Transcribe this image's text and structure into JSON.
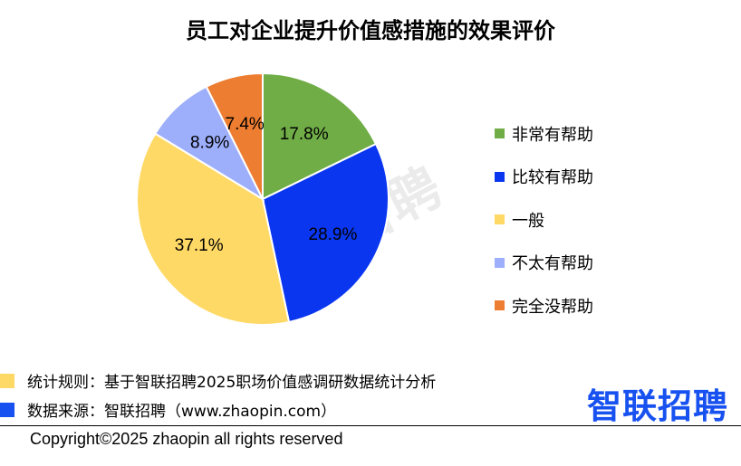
{
  "chart_data": {
    "type": "pie",
    "title": "员工对企业提升价值感措施的效果评价",
    "slices": [
      {
        "label": "非常有帮助",
        "value": 17.8,
        "display": "17.8%",
        "color": "#70ad47"
      },
      {
        "label": "比较有帮助",
        "value": 28.9,
        "display": "28.9%",
        "color": "#0a36f0"
      },
      {
        "label": "一般",
        "value": 37.1,
        "display": "37.1%",
        "color": "#ffd966"
      },
      {
        "label": "不太有帮助",
        "value": 8.9,
        "display": "8.9%",
        "color": "#9daefb"
      },
      {
        "label": "完全没帮助",
        "value": 7.4,
        "display": "7.4%",
        "color": "#ed7d31"
      }
    ],
    "legend_placement": "right"
  },
  "watermark": "智联招聘",
  "footer": {
    "rule_text": "统计规则：基于智联招聘2025职场价值感调研数据统计分析",
    "rule_color": "#ffd966",
    "source_text": "数据来源：智联招聘（www.zhaopin.com）",
    "source_color": "#1751f0",
    "logo_text": "智联招聘",
    "copyright": "Copyright©2025 zhaopin all rights reserved"
  }
}
